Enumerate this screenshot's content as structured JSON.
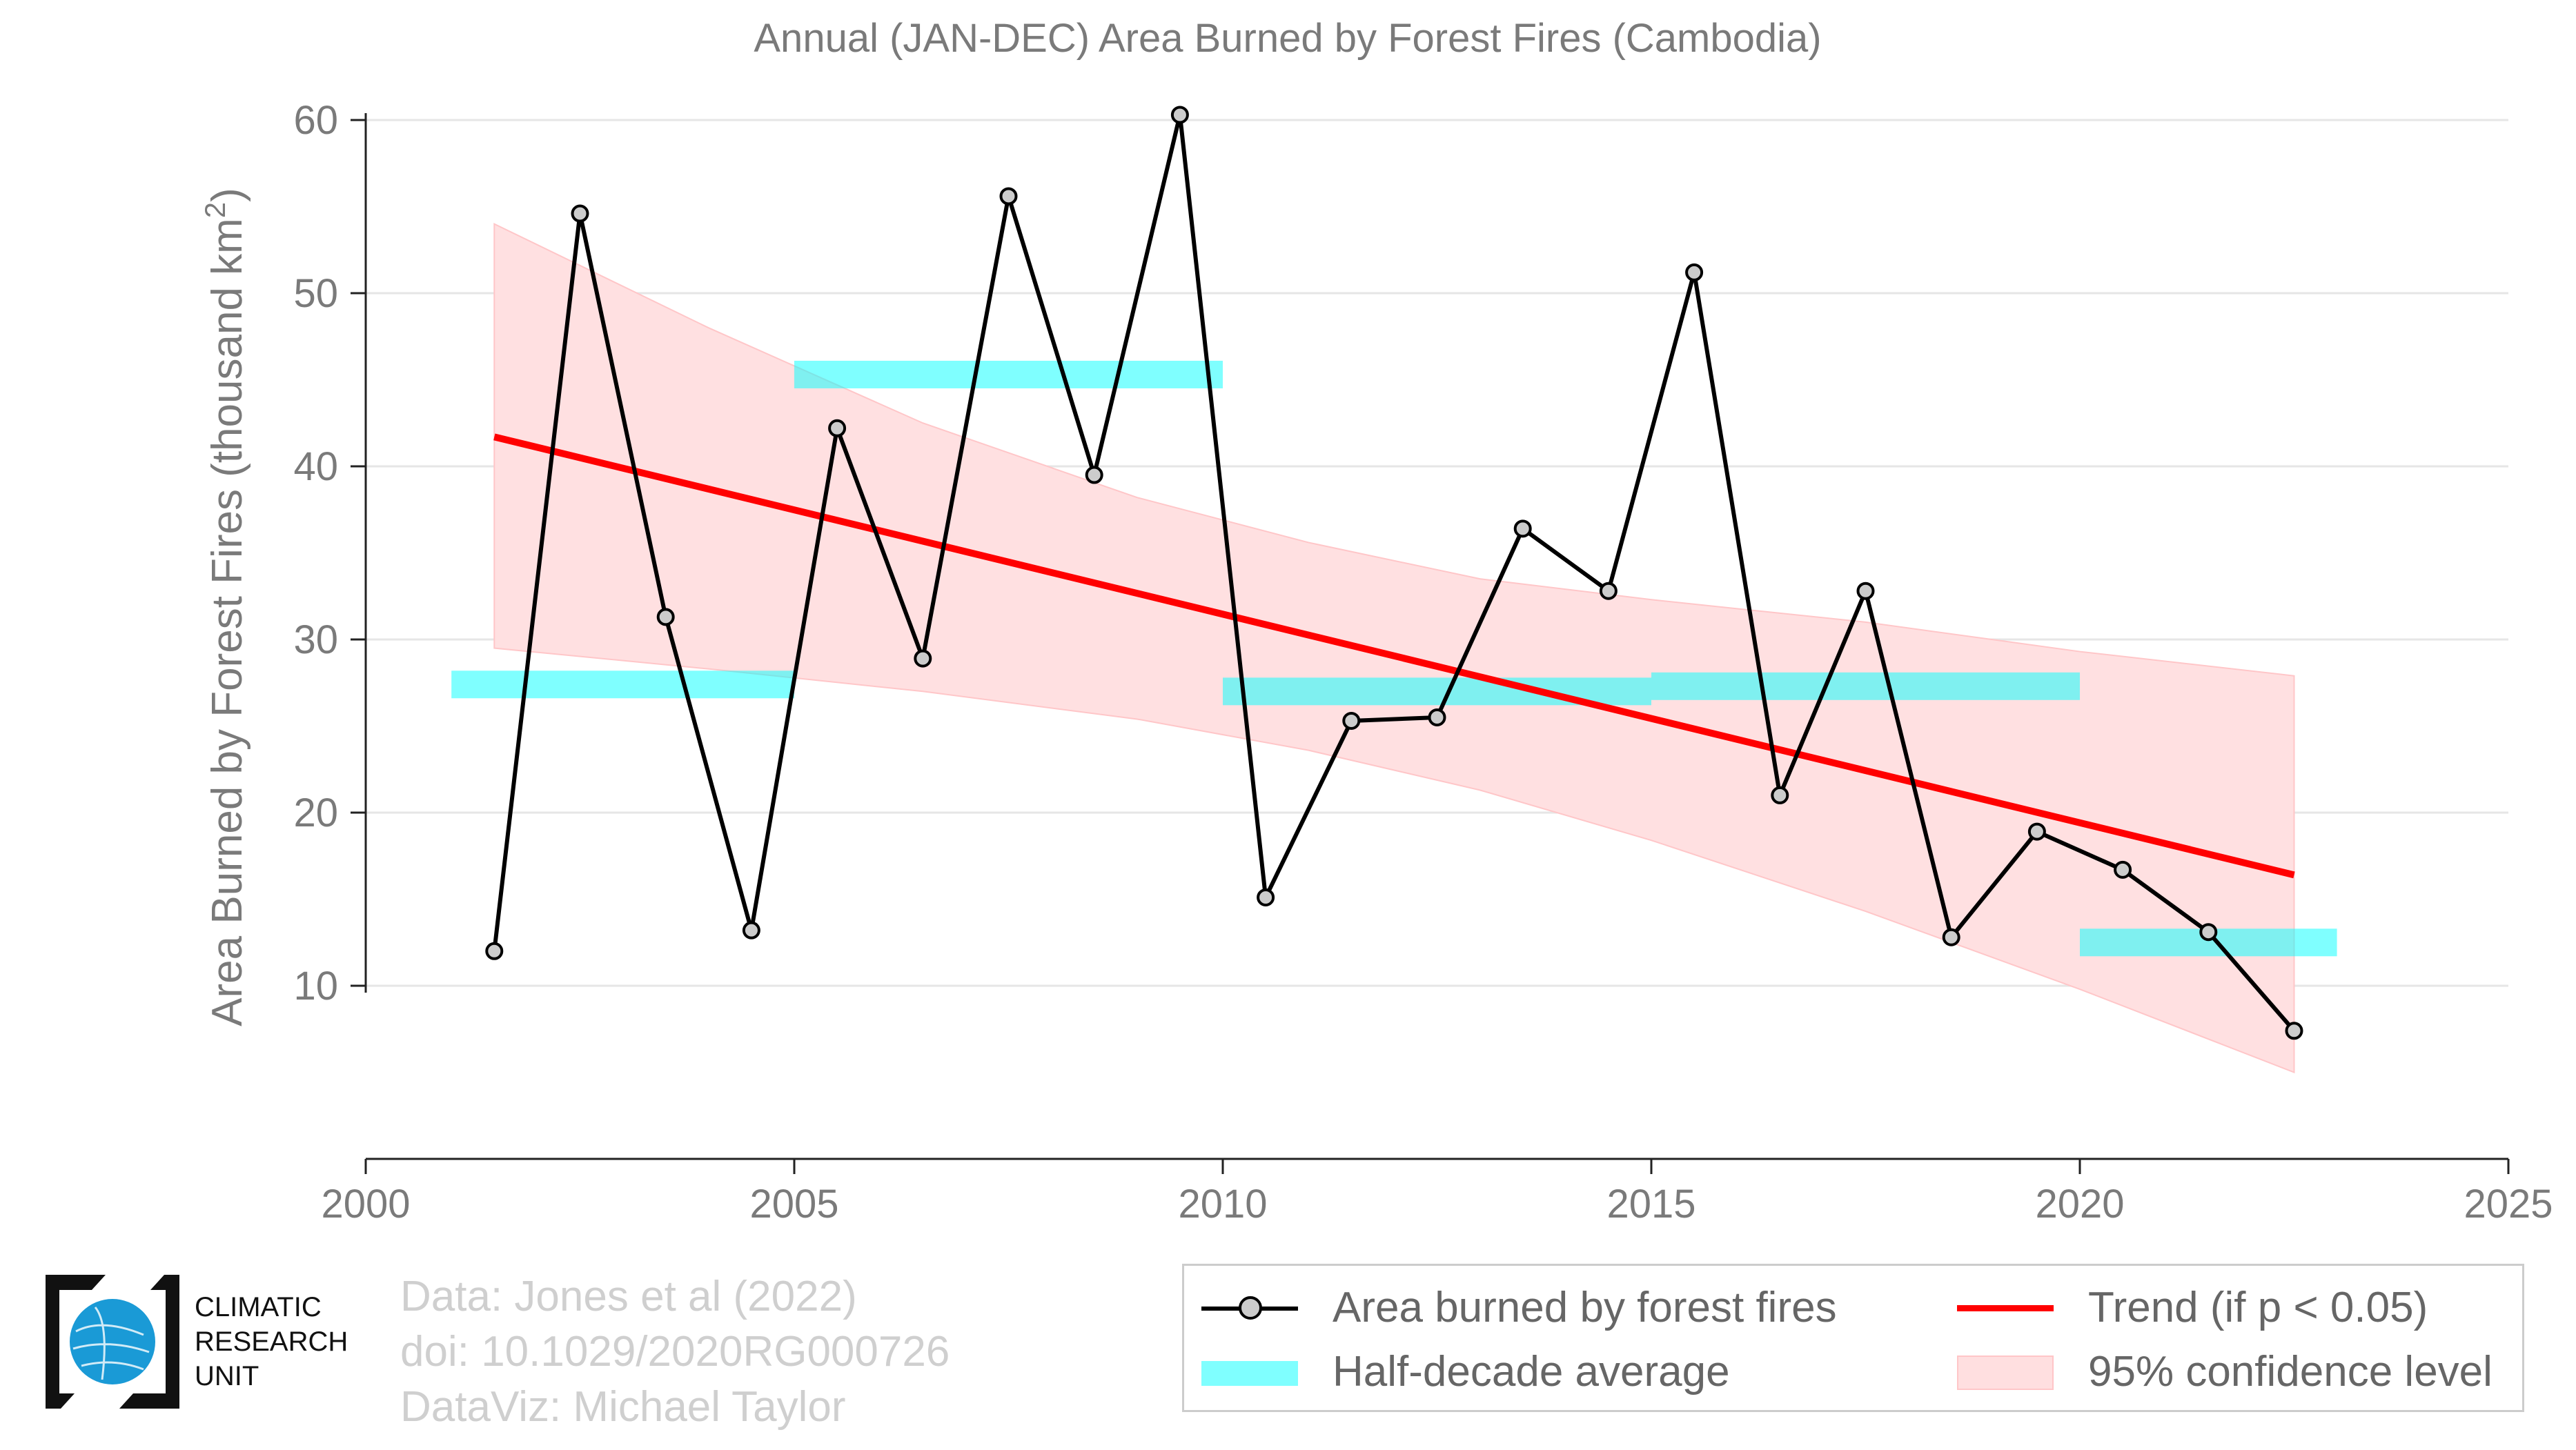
{
  "chart_data": {
    "type": "line",
    "title": "Annual (JAN-DEC) Area Burned by Forest Fires (Cambodia)",
    "xlabel": "",
    "ylabel": "Area Burned by Forest Fires (thousand km",
    "ylabel_sup": "2",
    "ylabel_end": ")",
    "xlim": [
      2000,
      2025
    ],
    "ylim": [
      0,
      60
    ],
    "xticks": [
      "2000",
      "2005",
      "2010",
      "2015",
      "2020",
      "2025"
    ],
    "yticks": [
      "10",
      "20",
      "30",
      "40",
      "50",
      "60"
    ],
    "grid": "horizontal",
    "series": [
      {
        "name": "Area burned by forest fires",
        "color": "#000000",
        "x": [
          2001.5,
          2002.5,
          2003.5,
          2004.5,
          2005.5,
          2006.5,
          2007.5,
          2008.5,
          2009.5,
          2010.5,
          2011.5,
          2012.5,
          2013.5,
          2014.5,
          2015.5,
          2016.5,
          2017.5,
          2018.5,
          2019.5,
          2020.5,
          2021.5,
          2022.5
        ],
        "y": [
          12.0,
          54.6,
          31.3,
          13.2,
          42.2,
          28.9,
          55.6,
          39.5,
          60.3,
          15.1,
          25.3,
          25.5,
          36.4,
          32.8,
          51.2,
          21.0,
          32.8,
          12.8,
          18.9,
          16.7,
          13.1,
          7.4
        ]
      }
    ],
    "half_decade": {
      "name": "Half-decade average",
      "color": "#00ffff",
      "segments": [
        {
          "x0": 2001,
          "x1": 2005,
          "y": 27.4
        },
        {
          "x0": 2005,
          "x1": 2010,
          "y": 45.3
        },
        {
          "x0": 2010,
          "x1": 2015,
          "y": 27.0
        },
        {
          "x0": 2015,
          "x1": 2020,
          "y": 27.3
        },
        {
          "x0": 2020,
          "x1": 2023,
          "y": 12.5
        }
      ]
    },
    "trend": {
      "name": "Trend (if p < 0.05)",
      "color": "#ff0000",
      "x": [
        2001.5,
        2022.5
      ],
      "y": [
        41.7,
        16.4
      ]
    },
    "confidence": {
      "name": "95% confidence level",
      "color": "#ffcccc",
      "x": [
        2001.5,
        2004,
        2006.5,
        2009,
        2011,
        2013,
        2015,
        2017.5,
        2020,
        2022.5
      ],
      "upper": [
        54.0,
        48.0,
        42.5,
        38.2,
        35.6,
        33.5,
        32.3,
        31.0,
        29.3,
        27.9
      ],
      "lower": [
        29.5,
        28.3,
        27.0,
        25.4,
        23.6,
        21.3,
        18.4,
        14.3,
        9.8,
        5.0
      ]
    },
    "legend_placement": "bottom-right"
  },
  "credits": {
    "line1": "Data: Jones et al (2022)",
    "line2": "doi: 10.1029/2020RG000726",
    "line3": "DataViz: Michael Taylor"
  },
  "logo": {
    "line1": "CLIMATIC",
    "line2": "RESEARCH",
    "line3": "UNIT",
    "globe_color": "#1a9ad6"
  }
}
